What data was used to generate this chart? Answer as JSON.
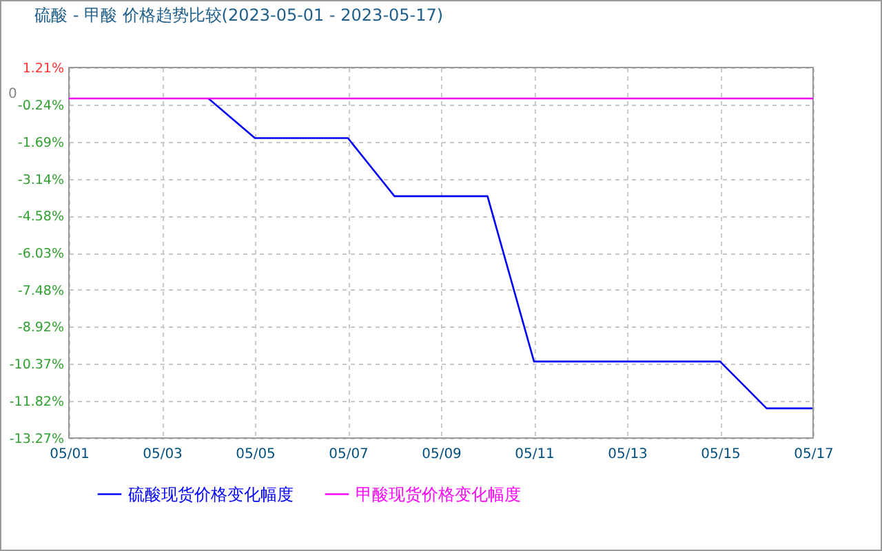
{
  "chart_data": {
    "type": "line",
    "title": "硫酸 - 甲酸 价格趋势比较(2023-05-01 - 2023-05-17)",
    "x": [
      "2023-05-01",
      "2023-05-02",
      "2023-05-03",
      "2023-05-04",
      "2023-05-05",
      "2023-05-06",
      "2023-05-07",
      "2023-05-08",
      "2023-05-09",
      "2023-05-10",
      "2023-05-11",
      "2023-05-12",
      "2023-05-13",
      "2023-05-14",
      "2023-05-15",
      "2023-05-16",
      "2023-05-17"
    ],
    "series": [
      {
        "name": "硫酸现货价格变化幅度",
        "color": "#0000ff",
        "values": [
          null,
          null,
          null,
          0,
          -1.55,
          -1.55,
          -1.55,
          -3.82,
          -3.82,
          -3.82,
          -10.28,
          -10.28,
          -10.28,
          -10.28,
          -10.28,
          -12.11,
          -12.11
        ]
      },
      {
        "name": "甲酸现货价格变化幅度",
        "color": "#ff00ff",
        "values": [
          0,
          0,
          0,
          0,
          0,
          0,
          0,
          0,
          0,
          0,
          0,
          0,
          0,
          0,
          0,
          0,
          0
        ]
      }
    ],
    "xlim": [
      "2023-05-01",
      "2023-05-17"
    ],
    "xticks": [
      {
        "value": "2023-05-01",
        "label": "05/01"
      },
      {
        "value": "2023-05-03",
        "label": "05/03"
      },
      {
        "value": "2023-05-05",
        "label": "05/05"
      },
      {
        "value": "2023-05-07",
        "label": "05/07"
      },
      {
        "value": "2023-05-09",
        "label": "05/09"
      },
      {
        "value": "2023-05-11",
        "label": "05/11"
      },
      {
        "value": "2023-05-13",
        "label": "05/13"
      },
      {
        "value": "2023-05-15",
        "label": "05/15"
      },
      {
        "value": "2023-05-17",
        "label": "05/17"
      }
    ],
    "ylim": [
      -13.27,
      1.21
    ],
    "yticks": [
      {
        "value": 1.21,
        "label": "1.21%"
      },
      {
        "value": -0.24,
        "label": "-0.24%"
      },
      {
        "value": -1.69,
        "label": "-1.69%"
      },
      {
        "value": -3.14,
        "label": "-3.14%"
      },
      {
        "value": -4.58,
        "label": "-4.58%"
      },
      {
        "value": -6.03,
        "label": "-6.03%"
      },
      {
        "value": -7.48,
        "label": "-7.48%"
      },
      {
        "value": -8.92,
        "label": "-8.92%"
      },
      {
        "value": -10.37,
        "label": "-10.37%"
      },
      {
        "value": -11.82,
        "label": "-11.82%"
      },
      {
        "value": -13.27,
        "label": "-13.27%"
      }
    ],
    "annotations": [
      "0"
    ],
    "grid": true,
    "legend": "bottom left",
    "marker": "none",
    "line_style": "solid"
  }
}
